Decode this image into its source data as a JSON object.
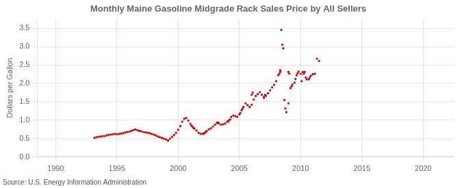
{
  "chart_data": {
    "type": "scatter",
    "title": "Monthly Maine Gasoline Midgrade Rack Sales Price by All Sellers",
    "ylabel": "Dollars per Gallon",
    "source": "Source: U.S. Energy Information Administration",
    "color": "#cc0000",
    "marker": "square",
    "grid": true,
    "xlim": [
      1988.5,
      2022.5
    ],
    "xticks": [
      1990,
      1995,
      2000,
      2005,
      2010,
      2015,
      2020
    ],
    "ylim": [
      0.0,
      3.75
    ],
    "yticks": [
      {
        "value": 0.0,
        "label": "0.0"
      },
      0.5,
      {
        "value": 1.0,
        "label": "1.0"
      },
      1.5,
      {
        "value": 2.0,
        "label": "2.0"
      },
      2.5,
      {
        "value": 3.0,
        "label": "3.0"
      },
      3.5
    ],
    "x": [
      1993.17,
      1993.33,
      1993.5,
      1993.67,
      1993.83,
      1994.0,
      1994.17,
      1994.33,
      1994.5,
      1994.67,
      1994.83,
      1995.0,
      1995.17,
      1995.33,
      1995.5,
      1995.67,
      1995.83,
      1996.0,
      1996.17,
      1996.33,
      1996.5,
      1996.67,
      1996.83,
      1997.0,
      1997.17,
      1997.33,
      1997.5,
      1997.67,
      1997.83,
      1998.0,
      1998.17,
      1998.33,
      1998.5,
      1998.67,
      1998.83,
      1999.0,
      1999.17,
      1999.33,
      1999.5,
      1999.67,
      1999.83,
      2000.0,
      2000.17,
      2000.33,
      2000.5,
      2000.67,
      2000.83,
      2001.0,
      2001.17,
      2001.33,
      2001.5,
      2001.67,
      2001.83,
      2002.0,
      2002.17,
      2002.33,
      2002.5,
      2002.67,
      2002.83,
      2003.0,
      2003.17,
      2003.33,
      2003.5,
      2003.67,
      2003.83,
      2004.0,
      2004.17,
      2004.33,
      2004.5,
      2004.67,
      2004.83,
      2005.0,
      2005.17,
      2005.33,
      2005.5,
      2005.67,
      2005.83,
      2006.0,
      2006.17,
      2006.33,
      2006.5,
      2006.67,
      2006.83,
      2007.0,
      2007.17,
      2007.33,
      2007.5,
      2007.67,
      2007.83,
      2008.0,
      2008.17,
      2008.33,
      2008.42,
      2008.5,
      2008.58,
      2008.67,
      2008.75,
      2008.83,
      2009.0,
      2009.17,
      2009.25,
      2009.33,
      2009.5,
      2009.58,
      2009.67,
      2009.75,
      2009.83,
      2010.0,
      2010.17,
      2010.25,
      2010.33,
      2010.5,
      2010.67,
      2010.75,
      2010.83,
      2011.0,
      2011.33,
      2006.0,
      2006.08,
      2007.0,
      2007.08,
      2008.25,
      2008.33,
      2009.0,
      2009.08,
      2010.08,
      2010.42,
      2011.17,
      2011.5,
      2003.17,
      2003.25,
      2004.08,
      2004.25,
      2005.08,
      2005.25,
      2002.08,
      2002.25,
      2001.08,
      2001.25
    ],
    "values": [
      0.52,
      0.54,
      0.55,
      0.56,
      0.57,
      0.57,
      0.59,
      0.6,
      0.61,
      0.62,
      0.63,
      0.62,
      0.63,
      0.64,
      0.65,
      0.67,
      0.68,
      0.69,
      0.71,
      0.73,
      0.75,
      0.73,
      0.71,
      0.7,
      0.68,
      0.67,
      0.66,
      0.65,
      0.63,
      0.61,
      0.59,
      0.56,
      0.54,
      0.52,
      0.5,
      0.48,
      0.45,
      0.5,
      0.55,
      0.6,
      0.66,
      0.74,
      0.84,
      0.96,
      1.04,
      1.06,
      0.99,
      0.9,
      0.83,
      0.77,
      0.72,
      0.66,
      0.63,
      0.63,
      0.66,
      0.71,
      0.75,
      0.78,
      0.83,
      0.88,
      0.93,
      0.91,
      0.88,
      0.89,
      0.91,
      0.96,
      1.01,
      1.09,
      1.13,
      1.11,
      1.09,
      1.16,
      1.27,
      1.36,
      1.46,
      1.41,
      1.36,
      1.42,
      1.56,
      1.66,
      1.71,
      1.76,
      1.69,
      1.61,
      1.66,
      1.73,
      1.81,
      1.89,
      1.96,
      2.06,
      2.22,
      2.36,
      3.45,
      3.05,
      2.95,
      1.55,
      1.32,
      1.22,
      1.46,
      1.87,
      1.92,
      1.97,
      2.02,
      2.12,
      2.22,
      2.27,
      2.32,
      2.26,
      2.31,
      2.26,
      2.31,
      2.11,
      2.11,
      2.16,
      2.21,
      2.25,
      2.67,
      1.69,
      1.75,
      1.63,
      1.69,
      2.26,
      2.31,
      2.31,
      2.26,
      2.06,
      2.16,
      2.26,
      2.61,
      0.92,
      0.94,
      0.97,
      1.02,
      1.2,
      1.31,
      0.64,
      0.68,
      0.85,
      0.79
    ]
  }
}
